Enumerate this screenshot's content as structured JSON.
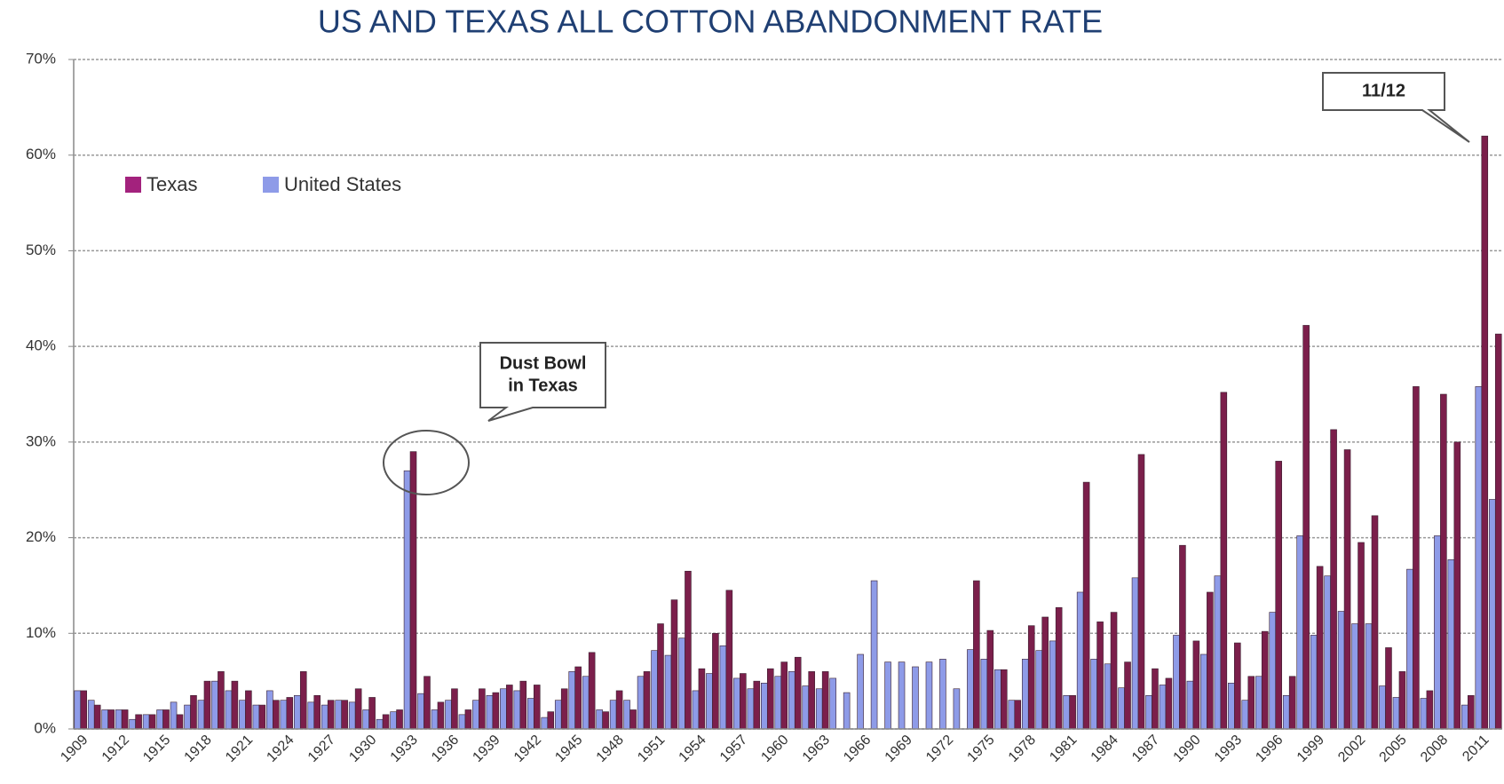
{
  "chart_data": {
    "type": "bar",
    "title": "US AND TEXAS ALL COTTON ABANDONMENT RATE",
    "categories": [
      "1909",
      null,
      null,
      "1912",
      null,
      null,
      "1915",
      null,
      null,
      "1918",
      null,
      null,
      "1921",
      null,
      null,
      "1924",
      null,
      null,
      "1927",
      null,
      null,
      "1930",
      null,
      null,
      "1933",
      null,
      null,
      "1936",
      null,
      null,
      "1939",
      null,
      null,
      "1942",
      null,
      null,
      "1945",
      null,
      null,
      "1948",
      null,
      null,
      "1951",
      null,
      null,
      "1954",
      null,
      null,
      "1957",
      null,
      null,
      "1960",
      null,
      null,
      "1963",
      null,
      null,
      "1966",
      null,
      null,
      "1969",
      null,
      null,
      "1972",
      null,
      null,
      "1975",
      null,
      null,
      "1978",
      null,
      null,
      "1981",
      null,
      null,
      "1984",
      null,
      null,
      "1987",
      null,
      null,
      "1990",
      null,
      null,
      "1993",
      null,
      null,
      "1996",
      null,
      null,
      "1999",
      null,
      null,
      "2002",
      null,
      null,
      "2005",
      null,
      null,
      "2008",
      null,
      null,
      "2011",
      null
    ],
    "series": [
      {
        "name": "United  States",
        "color": "#8e9be8",
        "values": [
          4,
          3,
          2,
          2,
          1,
          1.5,
          2,
          2.8,
          2.5,
          3,
          5,
          4,
          3,
          2.5,
          4,
          3,
          3.5,
          2.8,
          2.5,
          3,
          2.8,
          2,
          1,
          1.8,
          27,
          3.7,
          2,
          3,
          1.5,
          3,
          3.5,
          4.2,
          4,
          3.2,
          1.2,
          3,
          6,
          5.5,
          2,
          3,
          3,
          5.5,
          8.2,
          7.7,
          9.5,
          4,
          5.8,
          8.7,
          5.3,
          4.2,
          4.8,
          5.5,
          6,
          4.5,
          4.2,
          5.3,
          3.8,
          7.8,
          15.5,
          7,
          7,
          6.5,
          7,
          7.3,
          4.2,
          8.3,
          7.3,
          6.2,
          3,
          7.3,
          8.2,
          9.2,
          3.5,
          14.3,
          7.3,
          6.8,
          4.3,
          15.8,
          3.5,
          4.6,
          9.8,
          5,
          7.8,
          16,
          4.8,
          3,
          5.5,
          12.2,
          3.5,
          20.2,
          9.8,
          16,
          12.3,
          11,
          11,
          4.5,
          3.3,
          16.7,
          3.2,
          20.2,
          17.7,
          2.5,
          35.8,
          24
        ]
      },
      {
        "name": "Texas",
        "color": "#7b1f4b",
        "legend_color": "#a3227d",
        "values": [
          4,
          2.5,
          2,
          2,
          1.5,
          1.5,
          2,
          1.5,
          3.5,
          5,
          6,
          5,
          4,
          2.5,
          3,
          3.3,
          6,
          3.5,
          3,
          3,
          4.2,
          3.3,
          1.5,
          2,
          29,
          5.5,
          2.8,
          4.2,
          2,
          4.2,
          3.8,
          4.6,
          5,
          4.6,
          1.8,
          4.2,
          6.5,
          8,
          1.8,
          4,
          2,
          6,
          11,
          13.5,
          16.5,
          6.3,
          10,
          14.5,
          5.8,
          5,
          6.3,
          7,
          7.5,
          6,
          6,
          null,
          null,
          null,
          null,
          null,
          null,
          null,
          null,
          null,
          null,
          15.5,
          10.3,
          6.2,
          3,
          10.8,
          11.7,
          12.7,
          3.5,
          25.8,
          11.2,
          12.2,
          7,
          28.7,
          6.3,
          5.3,
          19.2,
          9.2,
          14.3,
          35.2,
          9,
          5.5,
          10.2,
          28,
          5.5,
          42.2,
          17,
          31.3,
          29.2,
          19.5,
          22.3,
          8.5,
          6,
          35.8,
          4,
          35,
          30,
          3.5,
          62,
          41.3
        ]
      }
    ],
    "ylim": [
      0,
      70
    ],
    "yticks": [
      {
        "value": 0,
        "label": "0%"
      },
      {
        "value": 10,
        "label": "10%"
      },
      {
        "value": 20,
        "label": "20%"
      },
      {
        "value": 30,
        "label": "30%"
      },
      {
        "value": 40,
        "label": "40%"
      },
      {
        "value": 50,
        "label": "50%"
      },
      {
        "value": 60,
        "label": "60%"
      },
      {
        "value": 70,
        "label": "70%"
      }
    ],
    "grid": true,
    "legend": "upper left",
    "annotations": [
      {
        "lines": [
          "Dust Bowl",
          "in Texas"
        ]
      },
      {
        "lines": [
          "11/12"
        ]
      }
    ]
  }
}
